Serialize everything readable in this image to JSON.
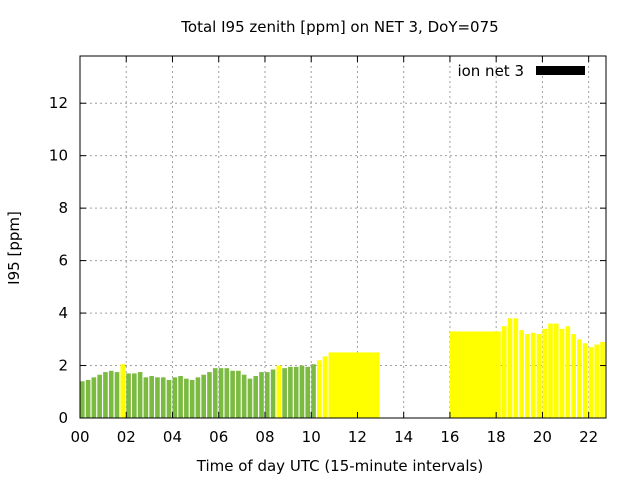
{
  "chart_data": {
    "type": "bar",
    "title": "Total I95 zenith [ppm] on NET 3, DoY=075",
    "xlabel": "Time of day UTC (15-minute intervals)",
    "ylabel": "I95 [ppm]",
    "xlim": [
      0,
      22.75
    ],
    "ylim": [
      0,
      13.8
    ],
    "x_ticks": [
      "00",
      "02",
      "04",
      "06",
      "08",
      "10",
      "12",
      "14",
      "16",
      "18",
      "20",
      "22"
    ],
    "y_ticks": [
      "0",
      "2",
      "4",
      "6",
      "8",
      "10",
      "12"
    ],
    "grid": true,
    "legend": {
      "position": "top-right",
      "entries": [
        {
          "label": "ion net 3",
          "color": "#000000"
        }
      ]
    },
    "colors": {
      "green": "#7cbb42",
      "yellow": "#ffff00"
    },
    "bar_width_hours": 0.2,
    "bars": [
      {
        "x": 0.0,
        "value": 1.4,
        "color": "green"
      },
      {
        "x": 0.25,
        "value": 1.45,
        "color": "green"
      },
      {
        "x": 0.5,
        "value": 1.55,
        "color": "green"
      },
      {
        "x": 0.75,
        "value": 1.65,
        "color": "green"
      },
      {
        "x": 1.0,
        "value": 1.75,
        "color": "green"
      },
      {
        "x": 1.25,
        "value": 1.8,
        "color": "green"
      },
      {
        "x": 1.5,
        "value": 1.75,
        "color": "green"
      },
      {
        "x": 1.75,
        "value": 2.05,
        "color": "yellow"
      },
      {
        "x": 2.0,
        "value": 1.7,
        "color": "green"
      },
      {
        "x": 2.25,
        "value": 1.7,
        "color": "green"
      },
      {
        "x": 2.5,
        "value": 1.75,
        "color": "green"
      },
      {
        "x": 2.75,
        "value": 1.55,
        "color": "green"
      },
      {
        "x": 3.0,
        "value": 1.6,
        "color": "green"
      },
      {
        "x": 3.25,
        "value": 1.55,
        "color": "green"
      },
      {
        "x": 3.5,
        "value": 1.55,
        "color": "green"
      },
      {
        "x": 3.75,
        "value": 1.45,
        "color": "green"
      },
      {
        "x": 4.0,
        "value": 1.55,
        "color": "green"
      },
      {
        "x": 4.25,
        "value": 1.6,
        "color": "green"
      },
      {
        "x": 4.5,
        "value": 1.5,
        "color": "green"
      },
      {
        "x": 4.75,
        "value": 1.45,
        "color": "green"
      },
      {
        "x": 5.0,
        "value": 1.55,
        "color": "green"
      },
      {
        "x": 5.25,
        "value": 1.65,
        "color": "green"
      },
      {
        "x": 5.5,
        "value": 1.75,
        "color": "green"
      },
      {
        "x": 5.75,
        "value": 1.9,
        "color": "green"
      },
      {
        "x": 6.0,
        "value": 1.9,
        "color": "green"
      },
      {
        "x": 6.25,
        "value": 1.9,
        "color": "green"
      },
      {
        "x": 6.5,
        "value": 1.8,
        "color": "green"
      },
      {
        "x": 6.75,
        "value": 1.8,
        "color": "green"
      },
      {
        "x": 7.0,
        "value": 1.65,
        "color": "green"
      },
      {
        "x": 7.25,
        "value": 1.5,
        "color": "green"
      },
      {
        "x": 7.5,
        "value": 1.6,
        "color": "green"
      },
      {
        "x": 7.75,
        "value": 1.75,
        "color": "green"
      },
      {
        "x": 8.0,
        "value": 1.75,
        "color": "green"
      },
      {
        "x": 8.25,
        "value": 1.85,
        "color": "green"
      },
      {
        "x": 8.5,
        "value": 2.0,
        "color": "yellow"
      },
      {
        "x": 8.75,
        "value": 1.9,
        "color": "green"
      },
      {
        "x": 9.0,
        "value": 1.95,
        "color": "green"
      },
      {
        "x": 9.25,
        "value": 1.95,
        "color": "green"
      },
      {
        "x": 9.5,
        "value": 2.0,
        "color": "green"
      },
      {
        "x": 9.75,
        "value": 1.95,
        "color": "green"
      },
      {
        "x": 10.0,
        "value": 2.05,
        "color": "green"
      },
      {
        "x": 10.25,
        "value": 2.2,
        "color": "yellow"
      },
      {
        "x": 10.5,
        "value": 2.35,
        "color": "yellow"
      },
      {
        "x": 10.75,
        "value": 2.5,
        "color": "yellow",
        "width_hours": 2.2
      },
      {
        "x": 16.0,
        "value": 3.3,
        "color": "yellow",
        "width_hours": 2.2
      },
      {
        "x": 18.25,
        "value": 3.5,
        "color": "yellow"
      },
      {
        "x": 18.5,
        "value": 3.8,
        "color": "yellow"
      },
      {
        "x": 18.75,
        "value": 3.8,
        "color": "yellow"
      },
      {
        "x": 19.0,
        "value": 3.35,
        "color": "yellow"
      },
      {
        "x": 19.25,
        "value": 3.2,
        "color": "yellow"
      },
      {
        "x": 19.5,
        "value": 3.25,
        "color": "yellow"
      },
      {
        "x": 19.75,
        "value": 3.2,
        "color": "yellow"
      },
      {
        "x": 20.0,
        "value": 3.4,
        "color": "yellow"
      },
      {
        "x": 20.25,
        "value": 3.6,
        "color": "yellow"
      },
      {
        "x": 20.5,
        "value": 3.6,
        "color": "yellow"
      },
      {
        "x": 20.75,
        "value": 3.4,
        "color": "yellow"
      },
      {
        "x": 21.0,
        "value": 3.5,
        "color": "yellow"
      },
      {
        "x": 21.25,
        "value": 3.2,
        "color": "yellow"
      },
      {
        "x": 21.5,
        "value": 3.0,
        "color": "yellow"
      },
      {
        "x": 21.75,
        "value": 2.85,
        "color": "yellow"
      },
      {
        "x": 22.0,
        "value": 2.7,
        "color": "yellow"
      },
      {
        "x": 22.25,
        "value": 2.8,
        "color": "yellow"
      },
      {
        "x": 22.5,
        "value": 2.9,
        "color": "yellow"
      }
    ]
  }
}
